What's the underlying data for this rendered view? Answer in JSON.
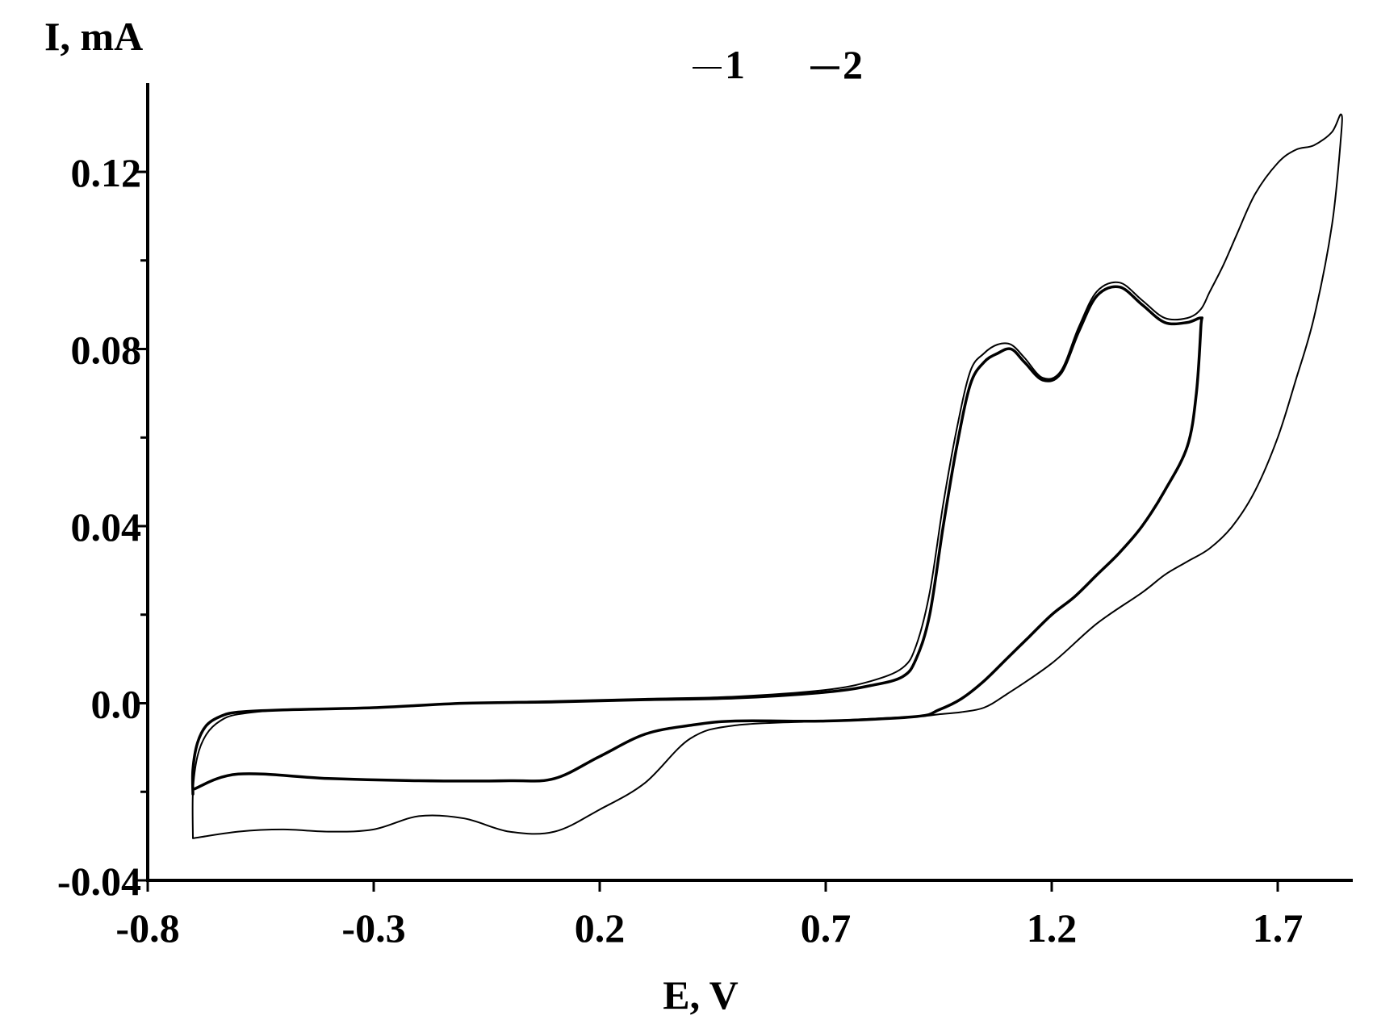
{
  "chart_data": {
    "type": "line",
    "xlabel": "E, V",
    "ylabel": "I, mA",
    "xlim": [
      -0.8,
      1.95
    ],
    "ylim": [
      -0.04,
      0.14
    ],
    "x_ticks": [
      -0.8,
      -0.3,
      0.2,
      0.7,
      1.2,
      1.7
    ],
    "x_tick_labels": [
      "-0.8",
      "-0.3",
      "0.2",
      "0.7",
      "1.2",
      "1.7"
    ],
    "y_ticks": [
      -0.04,
      0.0,
      0.04,
      0.08,
      0.12
    ],
    "y_tick_labels": [
      "-0.04",
      "0.0",
      "0.04",
      "0.08",
      "0.12"
    ],
    "y_minor_ticks": [
      -0.02,
      0.02,
      0.06,
      0.1
    ],
    "grid": false,
    "legend_position": "top-center",
    "series": [
      {
        "name": "1",
        "color": "#000000",
        "x": [
          -0.7,
          -0.7,
          -0.69,
          -0.67,
          -0.64,
          -0.6,
          -0.5,
          -0.3,
          -0.1,
          0.1,
          0.3,
          0.5,
          0.7,
          0.8,
          0.87,
          0.9,
          0.93,
          0.96,
          0.99,
          1.02,
          1.05,
          1.08,
          1.11,
          1.14,
          1.18,
          1.22,
          1.26,
          1.3,
          1.35,
          1.4,
          1.45,
          1.5,
          1.53,
          1.55,
          1.58,
          1.61,
          1.65,
          1.7,
          1.74,
          1.78,
          1.82,
          1.84,
          1.84,
          1.82,
          1.78,
          1.74,
          1.7,
          1.65,
          1.6,
          1.55,
          1.5,
          1.45,
          1.4,
          1.3,
          1.2,
          1.1,
          1.05,
          1.0,
          0.95,
          0.9,
          0.7,
          0.5,
          0.4,
          0.3,
          0.2,
          0.1,
          0.0,
          -0.1,
          -0.2,
          -0.3,
          -0.4,
          -0.5,
          -0.6,
          -0.7
        ],
        "y": [
          -0.0305,
          -0.02,
          -0.012,
          -0.007,
          -0.004,
          -0.0025,
          -0.0015,
          -0.001,
          0.0,
          0.0005,
          0.001,
          0.0015,
          0.003,
          0.005,
          0.008,
          0.013,
          0.025,
          0.045,
          0.062,
          0.075,
          0.079,
          0.081,
          0.081,
          0.078,
          0.0735,
          0.075,
          0.085,
          0.093,
          0.095,
          0.091,
          0.087,
          0.087,
          0.089,
          0.093,
          0.099,
          0.106,
          0.115,
          0.122,
          0.125,
          0.126,
          0.129,
          0.133,
          0.128,
          0.108,
          0.087,
          0.073,
          0.06,
          0.048,
          0.04,
          0.035,
          0.032,
          0.029,
          0.025,
          0.018,
          0.009,
          0.002,
          -0.001,
          -0.002,
          -0.0025,
          -0.003,
          -0.004,
          -0.005,
          -0.008,
          -0.018,
          -0.024,
          -0.029,
          -0.029,
          -0.026,
          -0.0255,
          -0.0285,
          -0.029,
          -0.0285,
          -0.029,
          -0.0305
        ]
      },
      {
        "name": "2",
        "color": "#000000",
        "x": [
          -0.7,
          -0.7,
          -0.69,
          -0.67,
          -0.64,
          -0.6,
          -0.5,
          -0.3,
          -0.1,
          0.1,
          0.3,
          0.5,
          0.7,
          0.8,
          0.87,
          0.9,
          0.93,
          0.96,
          0.99,
          1.02,
          1.05,
          1.08,
          1.11,
          1.14,
          1.18,
          1.22,
          1.26,
          1.3,
          1.35,
          1.4,
          1.45,
          1.5,
          1.53,
          1.53,
          1.52,
          1.5,
          1.45,
          1.4,
          1.35,
          1.3,
          1.25,
          1.2,
          1.15,
          1.1,
          1.05,
          1.0,
          0.95,
          0.9,
          0.7,
          0.5,
          0.4,
          0.3,
          0.2,
          0.1,
          0.0,
          -0.2,
          -0.4,
          -0.6,
          -0.7
        ],
        "y": [
          -0.0205,
          -0.015,
          -0.009,
          -0.005,
          -0.003,
          -0.002,
          -0.0015,
          -0.001,
          0.0,
          0.0003,
          0.0008,
          0.0012,
          0.0025,
          0.004,
          0.006,
          0.01,
          0.02,
          0.04,
          0.058,
          0.072,
          0.077,
          0.079,
          0.08,
          0.077,
          0.073,
          0.0745,
          0.084,
          0.092,
          0.094,
          0.09,
          0.086,
          0.086,
          0.087,
          0.085,
          0.07,
          0.058,
          0.048,
          0.04,
          0.034,
          0.029,
          0.024,
          0.02,
          0.015,
          0.01,
          0.005,
          0.001,
          -0.0015,
          -0.003,
          -0.004,
          -0.004,
          -0.005,
          -0.007,
          -0.012,
          -0.017,
          -0.0175,
          -0.0175,
          -0.017,
          -0.016,
          -0.0195
        ]
      }
    ]
  }
}
